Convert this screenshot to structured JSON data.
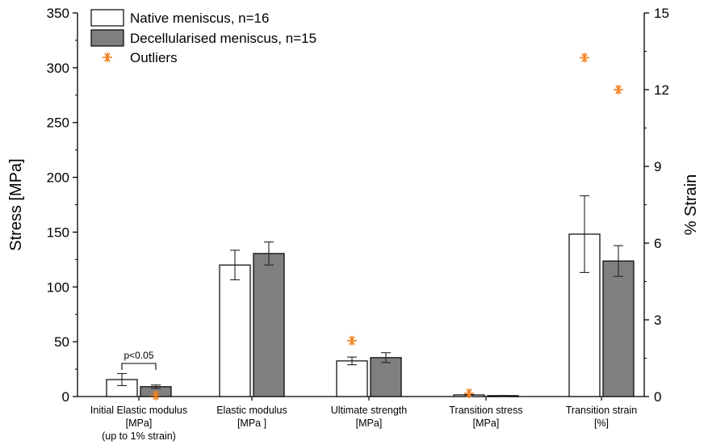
{
  "chart_data": {
    "type": "bar",
    "categories": [
      [
        "Initial Elastic modulus",
        "[MPa]",
        "(up to 1% strain)"
      ],
      [
        "Elastic modulus",
        "[MPa ]"
      ],
      [
        "Ultimate strength",
        "[MPa]"
      ],
      [
        "Transition stress",
        "[MPa]"
      ],
      [
        "Transition strain",
        "[%]"
      ]
    ],
    "series": [
      {
        "name": "Native meniscus, n=16",
        "color": "#ffffff",
        "values": [
          15.5,
          120,
          32.5,
          1.5,
          6.35
        ],
        "errors": [
          5.5,
          13.5,
          3.5,
          0.3,
          1.5
        ],
        "axis": [
          "left",
          "left",
          "left",
          "left",
          "right"
        ]
      },
      {
        "name": "Decellularised meniscus, n=15",
        "color": "#7f7f7f",
        "values": [
          9,
          130.5,
          35.5,
          0.8,
          5.3
        ],
        "errors": [
          1.5,
          10.5,
          4.5,
          0.2,
          0.6
        ],
        "axis": [
          "left",
          "left",
          "left",
          "left",
          "right"
        ]
      }
    ],
    "outliers": {
      "name": "Outliers",
      "color": "#f5821f",
      "points": [
        {
          "category": 0,
          "series": 1,
          "value": 1,
          "axis": "left"
        },
        {
          "category": 2,
          "series": 0,
          "value": 51,
          "axis": "left"
        },
        {
          "category": 3,
          "series": 0,
          "value": 3,
          "axis": "left"
        },
        {
          "category": 4,
          "series": 0,
          "value": 13.25,
          "axis": "right"
        },
        {
          "category": 4,
          "series": 1,
          "value": 12,
          "axis": "right"
        }
      ]
    },
    "annotation": {
      "text": "p<0.05",
      "category": 0
    },
    "ylabel": "Stress [MPa]",
    "y2label": "% Strain",
    "ylim": [
      0,
      350
    ],
    "y2lim": [
      0,
      15
    ],
    "yticks": [
      0,
      50,
      100,
      150,
      200,
      250,
      300,
      350
    ],
    "y2ticks": [
      0,
      3,
      6,
      9,
      12,
      15
    ],
    "grid": false,
    "legend_position": "top-left"
  }
}
